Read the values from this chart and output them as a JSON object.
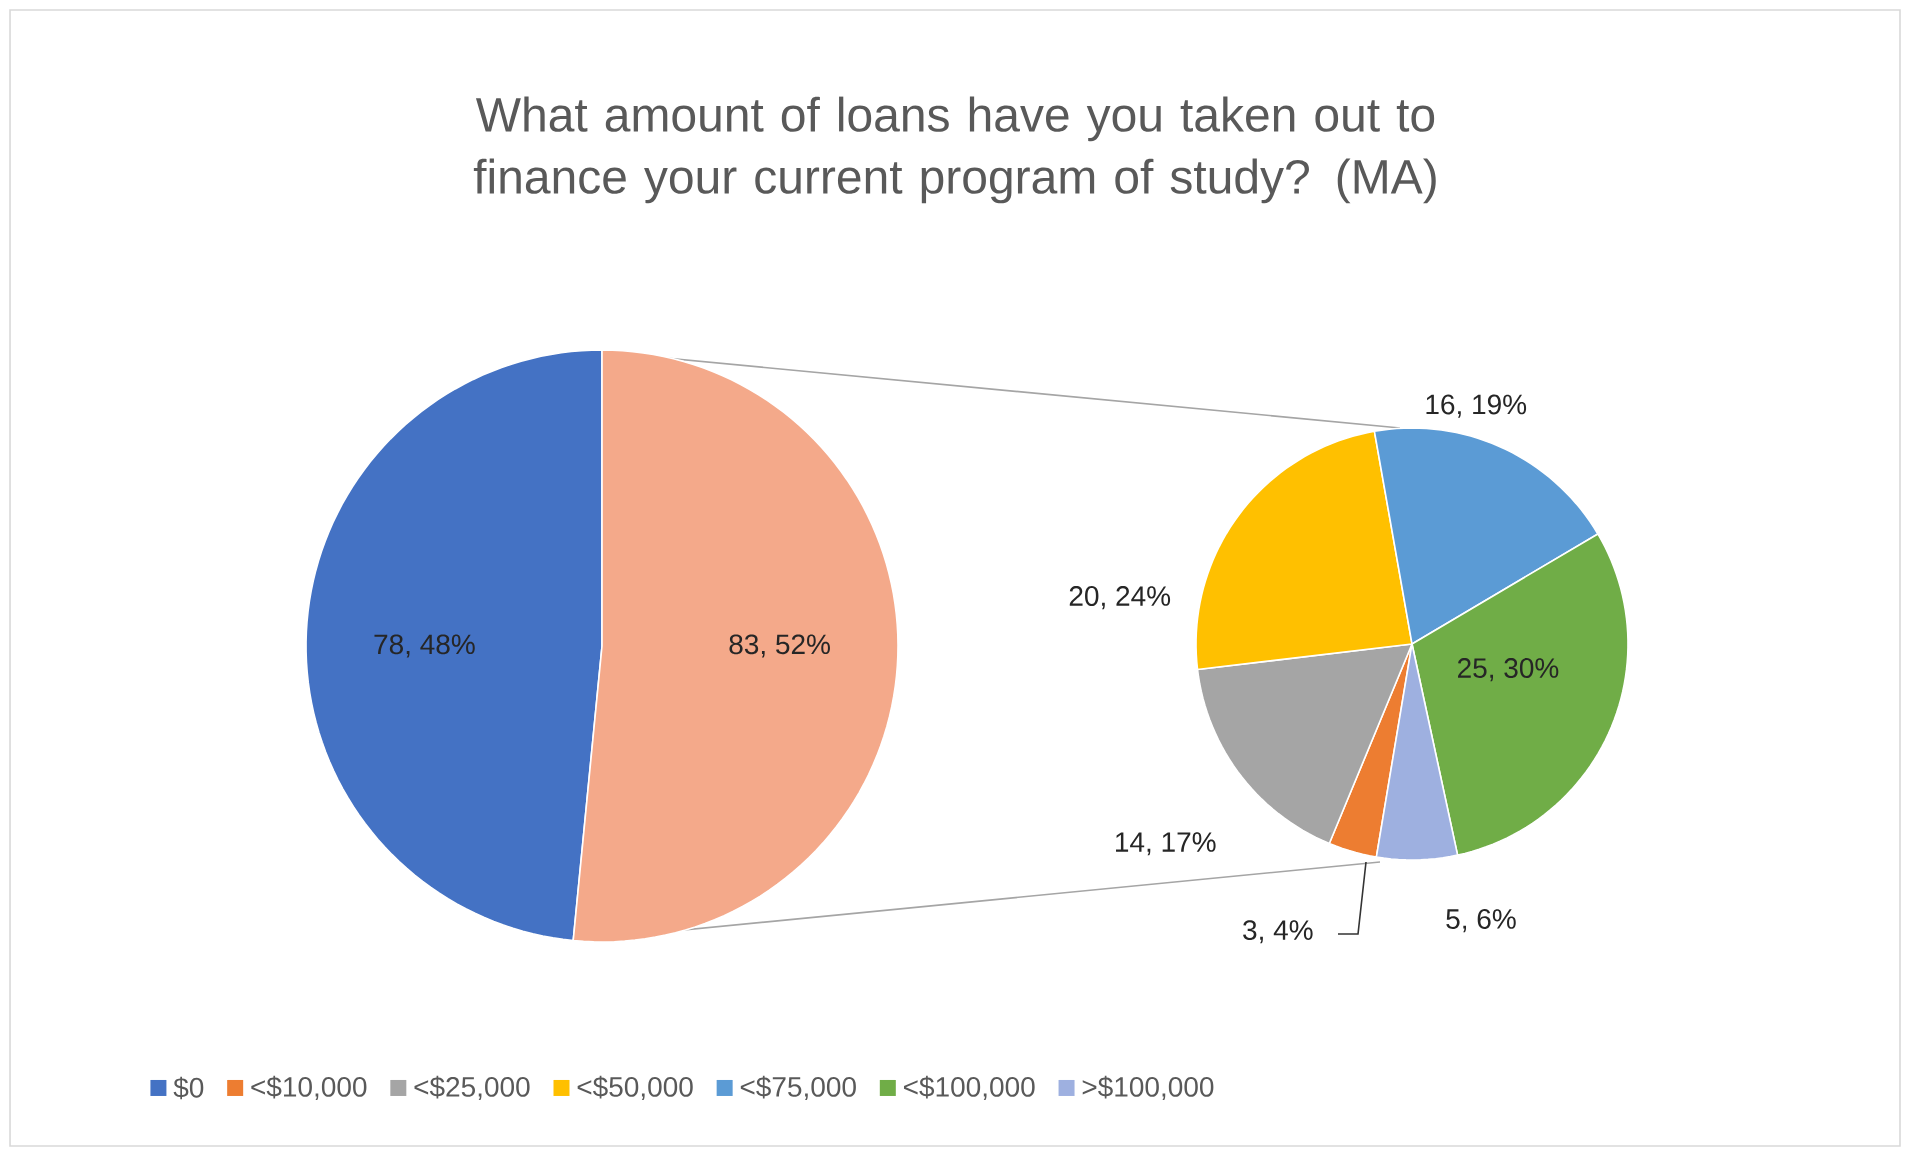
{
  "chart_data": [
    {
      "type": "pie",
      "title": "What amount of loans have you taken out to finance your current program of study? (MA)",
      "legend": "bottom",
      "categories": [
        "$0",
        null
      ],
      "values": [
        78,
        83
      ],
      "colors": [
        "#4472c4",
        "#f4a98a"
      ],
      "value_labels": [
        "78, 48%",
        "83, 52%"
      ]
    },
    {
      "type": "pie",
      "legend": "bottom",
      "categories": [
        "<$10,000",
        "<$25,000",
        "<$50,000",
        "<$75,000",
        "<$100,000",
        ">$100,000"
      ],
      "values": [
        3,
        14,
        20,
        16,
        25,
        5
      ],
      "colors": [
        "#ed7d31",
        "#a5a5a5",
        "#ffc000",
        "#5b9bd5",
        "#70ad47",
        "#9eb0e0"
      ],
      "value_labels": [
        "3, 4%",
        "14, 17%",
        "20, 24%",
        "16, 19%",
        "25, 30%",
        "5, 6%"
      ]
    }
  ]
}
